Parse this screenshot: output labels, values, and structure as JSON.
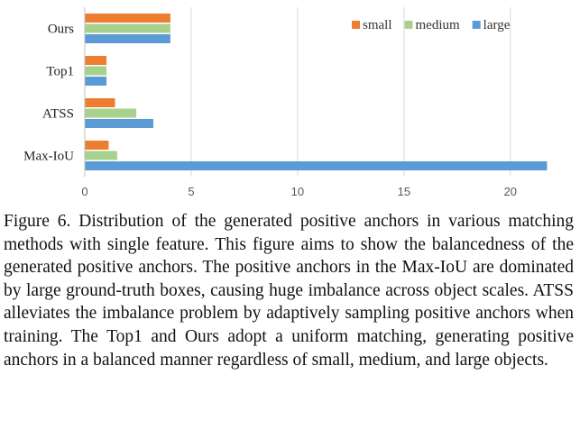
{
  "chart_data": {
    "type": "bar",
    "orientation": "horizontal",
    "categories": [
      "Ours",
      "Top1",
      "ATSS",
      "Max-IoU"
    ],
    "series": [
      {
        "name": "small",
        "color": "#ED7D31",
        "values": [
          4.0,
          1.0,
          1.4,
          1.1
        ]
      },
      {
        "name": "medium",
        "color": "#A9D18E",
        "values": [
          4.0,
          1.0,
          2.4,
          1.5
        ]
      },
      {
        "name": "large",
        "color": "#5B9BD5",
        "values": [
          4.0,
          1.0,
          3.2,
          21.7
        ]
      }
    ],
    "xlim": [
      0,
      22
    ],
    "xticks": [
      "0",
      "5",
      "10",
      "15",
      "20"
    ],
    "grid": true,
    "legend": "top-right",
    "title": "",
    "xlabel": "",
    "ylabel": ""
  },
  "caption": "Figure 6. Distribution of the generated positive anchors in various matching methods with single feature.  This figure aims to show the balancedness of the generated positive anchors. The positive anchors in the Max-IoU are dominated by large ground-truth boxes, causing huge imbalance across object scales.  ATSS alleviates the imbalance problem by adaptively sampling positive anchors when training. The Top1 and Ours adopt a uniform matching, generating positive anchors in a balanced manner regardless of small, medium, and large objects."
}
